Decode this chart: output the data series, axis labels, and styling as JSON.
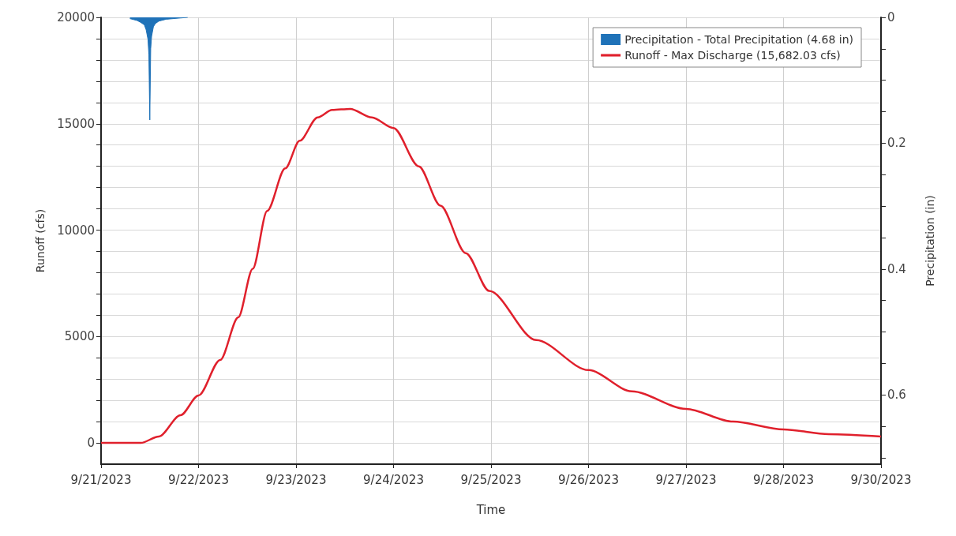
{
  "chart_data": {
    "type": "line",
    "xlabel": "Time",
    "ylabel": "Runoff (cfs)",
    "y2label": "Precipitation (in)",
    "xlim": [
      "2023-09-21T00:00",
      "2023-09-30T00:00"
    ],
    "xticks": [
      {
        "value": "2023-09-21T00:00",
        "label": "9/21/2023"
      },
      {
        "value": "2023-09-22T03:00",
        "label": "9/22/2023"
      },
      {
        "value": "2023-09-23T06:00",
        "label": "9/23/2023"
      },
      {
        "value": "2023-09-24T09:00",
        "label": "9/24/2023"
      },
      {
        "value": "2023-09-25T12:00",
        "label": "9/25/2023"
      },
      {
        "value": "2023-09-26T15:00",
        "label": "9/26/2023"
      },
      {
        "value": "2023-09-27T18:00",
        "label": "9/27/2023"
      },
      {
        "value": "2023-09-28T21:00",
        "label": "9/28/2023"
      },
      {
        "value": "2023-09-30T00:00",
        "label": "9/30/2023"
      }
    ],
    "ylim": [
      -1000,
      20000
    ],
    "yticks": [
      0,
      {
        "value": 1000,
        "label": null
      },
      {
        "value": 2000,
        "label": null
      },
      {
        "value": 3000,
        "label": null
      },
      {
        "value": 4000,
        "label": null
      },
      5000,
      {
        "value": 6000,
        "label": null
      },
      {
        "value": 7000,
        "label": null
      },
      {
        "value": 8000,
        "label": null
      },
      {
        "value": 9000,
        "label": null
      },
      10000,
      {
        "value": 11000,
        "label": null
      },
      {
        "value": 12000,
        "label": null
      },
      {
        "value": 13000,
        "label": null
      },
      {
        "value": 14000,
        "label": null
      },
      15000,
      {
        "value": 16000,
        "label": null
      },
      {
        "value": 17000,
        "label": null
      },
      {
        "value": 18000,
        "label": null
      },
      {
        "value": 19000,
        "label": null
      },
      20000
    ],
    "y2lim": [
      0.71,
      0
    ],
    "y2ticks": [
      0,
      {
        "value": 0.05,
        "label": null
      },
      {
        "value": 0.1,
        "label": null
      },
      {
        "value": 0.15,
        "label": null
      },
      0.2,
      {
        "value": 0.25,
        "label": null
      },
      {
        "value": 0.3,
        "label": null
      },
      {
        "value": 0.35,
        "label": null
      },
      0.4,
      {
        "value": 0.45,
        "label": null
      },
      {
        "value": 0.5,
        "label": null
      },
      {
        "value": 0.55,
        "label": null
      },
      0.6,
      {
        "value": 0.65,
        "label": null
      },
      {
        "value": 0.7,
        "label": null
      }
    ],
    "grid": true,
    "legend": "top right",
    "marker": "none",
    "line_style": "solid",
    "series": [
      {
        "name": "Precipitation - Total Precipitation (4.68 in)",
        "type": "area",
        "axis": "y2",
        "color": "#1f72b8",
        "x": [
          "2023-09-21T08:00",
          "2023-09-21T10:00",
          "2023-09-21T11:00",
          "2023-09-21T12:00",
          "2023-09-21T12:30",
          "2023-09-21T13:00",
          "2023-09-21T13:15",
          "2023-09-21T13:30",
          "2023-09-21T13:45",
          "2023-09-21T14:00",
          "2023-09-21T14:30",
          "2023-09-21T15:00",
          "2023-09-21T16:00",
          "2023-09-21T18:00",
          "2023-09-21T22:00",
          "2023-09-22T00:00"
        ],
        "values": [
          0.002,
          0.005,
          0.008,
          0.012,
          0.02,
          0.035,
          0.06,
          0.163,
          0.05,
          0.03,
          0.015,
          0.01,
          0.006,
          0.003,
          0.001,
          0
        ]
      },
      {
        "name": "Runoff - Max Discharge (15,682.03 cfs)",
        "color": "#e0202c",
        "x": [
          "2023-09-21T00:00",
          "2023-09-21T11:00",
          "2023-09-21T16:00",
          "2023-09-21T22:00",
          "2023-09-22T03:00",
          "2023-09-22T09:00",
          "2023-09-22T14:00",
          "2023-09-22T18:00",
          "2023-09-22T22:00",
          "2023-09-23T03:00",
          "2023-09-23T07:00",
          "2023-09-23T12:00",
          "2023-09-23T16:00",
          "2023-09-23T21:00",
          "2023-09-24T03:00",
          "2023-09-24T09:00",
          "2023-09-24T16:00",
          "2023-09-24T22:00",
          "2023-09-25T05:00",
          "2023-09-25T11:30",
          "2023-09-26T00:30",
          "2023-09-26T15:00",
          "2023-09-27T03:00",
          "2023-09-27T18:00",
          "2023-09-28T07:00",
          "2023-09-28T21:00",
          "2023-09-29T09:30",
          "2023-09-30T00:00"
        ],
        "values": [
          0,
          0,
          300,
          1300,
          2230,
          3900,
          5900,
          8180,
          10900,
          12900,
          14200,
          15300,
          15650,
          15700,
          15300,
          14800,
          13000,
          11150,
          8920,
          7140,
          4830,
          3420,
          2420,
          1600,
          1000,
          630,
          410,
          300
        ]
      }
    ]
  }
}
